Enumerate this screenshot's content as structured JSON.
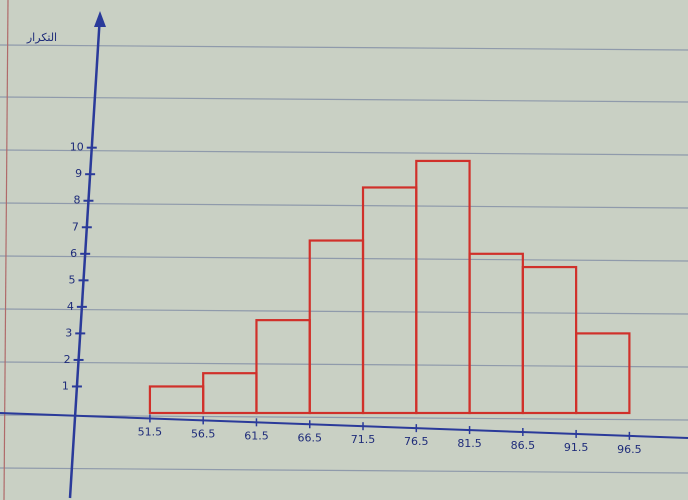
{
  "chart_data": {
    "type": "histogram",
    "y_label": "التكرار",
    "bins": [
      51.5,
      56.5,
      61.5,
      66.5,
      71.5,
      76.5,
      81.5,
      86.5,
      91.5,
      96.5
    ],
    "counts": [
      1,
      1.5,
      3.5,
      6.5,
      8.5,
      9.5,
      6,
      5.5,
      3
    ],
    "color": "#d0302a",
    "axis_color": "#2a3a9a",
    "xlim": [
      44,
      102
    ],
    "ylim": [
      0,
      15
    ],
    "xticks": [
      51.5,
      56.5,
      61.5,
      66.5,
      71.5,
      76.5,
      81.5,
      86.5,
      91.5,
      96.5
    ],
    "yticks": [
      1,
      2,
      3,
      4,
      5,
      6,
      7,
      8,
      9,
      10
    ]
  }
}
